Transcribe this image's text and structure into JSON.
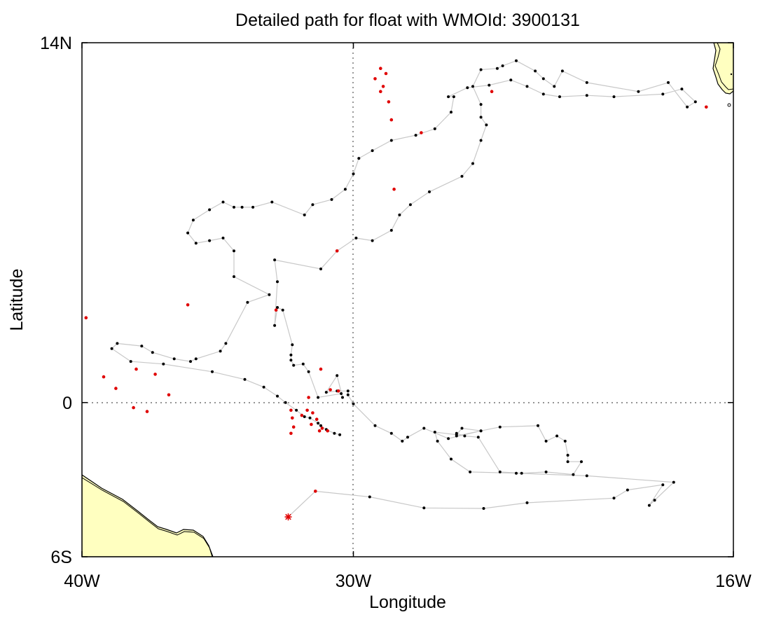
{
  "title": "Detailed path for float with WMOId: 3900131",
  "xlabel": "Longitude",
  "ylabel": "Latitude",
  "x_ticks": [
    {
      "value": -40,
      "label": "40W"
    },
    {
      "value": -30,
      "label": "30W"
    },
    {
      "value": -16,
      "label": "16W"
    }
  ],
  "y_ticks": [
    {
      "value": 14,
      "label": "14N"
    },
    {
      "value": 0,
      "label": "0"
    },
    {
      "value": -6,
      "label": "6S"
    }
  ],
  "colors": {
    "land": "#ffffc0",
    "track": "#c8c8c8",
    "profile": "#000000",
    "flagged": "#e00000",
    "grid": "#555555"
  },
  "chart_data": {
    "type": "scatter",
    "xlim": [
      -40,
      -16
    ],
    "ylim": [
      -6,
      14
    ],
    "grid": "dotted lines at 30W and the equator",
    "start_marker": {
      "lon": -32.4,
      "lat": -4.45
    },
    "track": [
      [
        -32.4,
        -4.45
      ],
      [
        -31.4,
        -3.45
      ],
      [
        -29.4,
        -3.67
      ],
      [
        -27.4,
        -4.1
      ],
      [
        -25.2,
        -4.12
      ],
      [
        -23.6,
        -3.9
      ],
      [
        -20.4,
        -3.72
      ],
      [
        -19.9,
        -3.4
      ],
      [
        -18.6,
        -3.2
      ],
      [
        -19.1,
        -4.0
      ],
      [
        -18.9,
        -3.8
      ],
      [
        -18.2,
        -3.1
      ],
      [
        -21.4,
        -2.85
      ],
      [
        -24.0,
        -2.75
      ],
      [
        -25.7,
        -2.7
      ],
      [
        -26.4,
        -2.2
      ],
      [
        -26.9,
        -1.5
      ],
      [
        -27.0,
        -1.15
      ],
      [
        -26.2,
        -1.25
      ],
      [
        -26.0,
        -1.0
      ],
      [
        -25.3,
        -1.1
      ],
      [
        -24.6,
        -0.95
      ],
      [
        -23.2,
        -0.9
      ],
      [
        -22.9,
        -1.5
      ],
      [
        -22.5,
        -1.3
      ],
      [
        -22.2,
        -1.5
      ],
      [
        -22.1,
        -2.05
      ],
      [
        -22.1,
        -2.3
      ],
      [
        -21.6,
        -2.3
      ],
      [
        -21.9,
        -2.8
      ],
      [
        -22.9,
        -2.7
      ],
      [
        -23.8,
        -2.75
      ],
      [
        -24.6,
        -2.7
      ],
      [
        -25.4,
        -1.35
      ],
      [
        -25.9,
        -1.3
      ],
      [
        -26.2,
        -1.2
      ],
      [
        -26.2,
        -1.3
      ],
      [
        -25.3,
        -1.1
      ],
      [
        -26.5,
        -1.4
      ],
      [
        -27.4,
        -1.0
      ],
      [
        -28.0,
        -1.35
      ],
      [
        -28.2,
        -1.5
      ],
      [
        -28.6,
        -1.2
      ],
      [
        -29.2,
        -0.9
      ],
      [
        -30.0,
        -0.05
      ],
      [
        -30.2,
        0.3
      ],
      [
        -30.2,
        0.45
      ],
      [
        -30.6,
        0.45
      ],
      [
        -31.0,
        0.4
      ],
      [
        -30.6,
        1.05
      ],
      [
        -30.4,
        0.2
      ],
      [
        -30.45,
        0.35
      ],
      [
        -31.3,
        0.2
      ],
      [
        -31.65,
        1.2
      ],
      [
        -31.85,
        1.5
      ],
      [
        -32.2,
        1.45
      ],
      [
        -32.3,
        1.65
      ],
      [
        -32.3,
        1.85
      ],
      [
        -32.25,
        2.25
      ],
      [
        -32.6,
        3.6
      ],
      [
        -32.8,
        3.7
      ],
      [
        -32.9,
        3.0
      ],
      [
        -32.8,
        4.7
      ],
      [
        -32.9,
        5.55
      ],
      [
        -31.2,
        5.2
      ],
      [
        -30.6,
        5.9
      ],
      [
        -29.9,
        6.4
      ],
      [
        -29.3,
        6.3
      ],
      [
        -28.6,
        6.7
      ],
      [
        -28.3,
        7.3
      ],
      [
        -27.9,
        7.7
      ],
      [
        -27.2,
        8.2
      ],
      [
        -26.0,
        8.8
      ],
      [
        -25.6,
        9.3
      ],
      [
        -25.3,
        10.2
      ],
      [
        -25.1,
        10.8
      ],
      [
        -25.3,
        11.1
      ],
      [
        -25.3,
        11.6
      ],
      [
        -25.6,
        12.3
      ],
      [
        -25.3,
        12.95
      ],
      [
        -24.7,
        13.0
      ],
      [
        -24.5,
        13.1
      ],
      [
        -24.0,
        13.3
      ],
      [
        -23.3,
        12.9
      ],
      [
        -23.0,
        12.6
      ],
      [
        -22.6,
        12.3
      ],
      [
        -22.3,
        12.9
      ],
      [
        -21.4,
        12.45
      ],
      [
        -19.5,
        12.1
      ],
      [
        -18.4,
        12.45
      ],
      [
        -17.7,
        11.5
      ],
      [
        -17.4,
        11.7
      ],
      [
        -17.9,
        12.2
      ],
      [
        -18.6,
        12.0
      ],
      [
        -20.4,
        11.9
      ],
      [
        -21.4,
        11.95
      ],
      [
        -22.4,
        11.9
      ],
      [
        -23.0,
        12.0
      ],
      [
        -23.6,
        12.3
      ],
      [
        -24.2,
        12.55
      ],
      [
        -25.0,
        12.35
      ],
      [
        -25.8,
        12.25
      ],
      [
        -26.5,
        11.9
      ],
      [
        -26.3,
        11.9
      ],
      [
        -26.4,
        11.3
      ],
      [
        -27.0,
        10.65
      ],
      [
        -27.7,
        10.4
      ],
      [
        -28.6,
        10.2
      ],
      [
        -29.3,
        9.8
      ],
      [
        -29.8,
        9.5
      ],
      [
        -30.0,
        8.9
      ],
      [
        -30.3,
        8.3
      ],
      [
        -30.8,
        7.9
      ],
      [
        -31.5,
        7.7
      ],
      [
        -31.8,
        7.3
      ],
      [
        -33.0,
        7.8
      ],
      [
        -33.7,
        7.6
      ],
      [
        -34.1,
        7.6
      ],
      [
        -34.4,
        7.6
      ],
      [
        -34.8,
        7.8
      ],
      [
        -35.3,
        7.5
      ],
      [
        -35.9,
        7.1
      ],
      [
        -36.1,
        6.6
      ],
      [
        -35.8,
        6.2
      ],
      [
        -35.3,
        6.3
      ],
      [
        -34.8,
        6.4
      ],
      [
        -34.4,
        5.9
      ],
      [
        -34.4,
        4.9
      ],
      [
        -33.1,
        4.2
      ],
      [
        -33.9,
        3.9
      ],
      [
        -34.7,
        2.3
      ],
      [
        -34.9,
        2.0
      ],
      [
        -35.8,
        1.7
      ],
      [
        -36.0,
        1.6
      ],
      [
        -36.6,
        1.7
      ],
      [
        -37.4,
        1.95
      ],
      [
        -37.8,
        2.2
      ],
      [
        -38.7,
        2.3
      ],
      [
        -38.9,
        2.1
      ],
      [
        -38.2,
        1.6
      ],
      [
        -37.0,
        1.5
      ],
      [
        -35.2,
        1.2
      ],
      [
        -34.0,
        0.9
      ],
      [
        -33.3,
        0.6
      ],
      [
        -32.8,
        0.25
      ],
      [
        -32.5,
        0.0
      ],
      [
        -32.1,
        -0.3
      ],
      [
        -31.8,
        -0.55
      ],
      [
        -31.6,
        -0.6
      ],
      [
        -31.3,
        -0.8
      ],
      [
        -31.2,
        -0.9
      ],
      [
        -31.0,
        -1.05
      ],
      [
        -30.7,
        -1.2
      ],
      [
        -30.5,
        -1.25
      ]
    ],
    "flagged": [
      [
        -31.4,
        -3.45
      ],
      [
        -32.3,
        -1.2
      ],
      [
        -32.2,
        -0.95
      ],
      [
        -32.25,
        -0.6
      ],
      [
        -31.9,
        -0.5
      ],
      [
        -31.35,
        -0.65
      ],
      [
        -31.55,
        -0.85
      ],
      [
        -31.15,
        -1.0
      ],
      [
        -31.25,
        -1.1
      ],
      [
        -30.95,
        -1.1
      ],
      [
        -32.3,
        -0.3
      ],
      [
        -31.7,
        -0.3
      ],
      [
        -31.5,
        -0.4
      ],
      [
        -31.65,
        0.2
      ],
      [
        -30.85,
        0.5
      ],
      [
        -30.55,
        0.45
      ],
      [
        -31.2,
        1.3
      ],
      [
        -32.85,
        3.6
      ],
      [
        -30.6,
        5.9
      ],
      [
        -36.1,
        3.8
      ],
      [
        -36.8,
        0.3
      ],
      [
        -37.6,
        -0.35
      ],
      [
        -38.1,
        -0.2
      ],
      [
        -38.75,
        0.55
      ],
      [
        -39.2,
        1.0
      ],
      [
        -39.85,
        3.3
      ],
      [
        -38.0,
        1.3
      ],
      [
        -37.3,
        1.1
      ],
      [
        -28.5,
        8.3
      ],
      [
        -28.6,
        11.0
      ],
      [
        -28.9,
        12.3
      ],
      [
        -29.2,
        12.6
      ],
      [
        -29.0,
        13.0
      ],
      [
        -28.8,
        12.8
      ],
      [
        -29.0,
        12.1
      ],
      [
        -28.7,
        11.7
      ],
      [
        -24.9,
        12.1
      ],
      [
        -27.5,
        10.5
      ],
      [
        -17.0,
        11.5
      ]
    ]
  }
}
